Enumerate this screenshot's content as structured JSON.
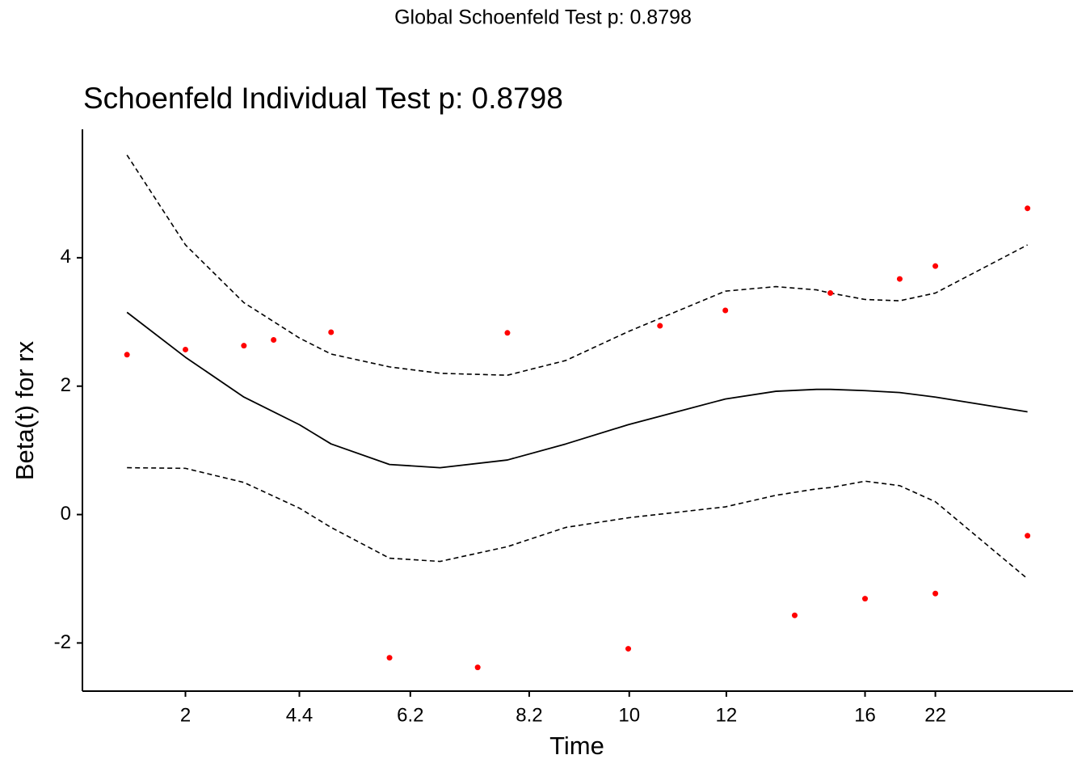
{
  "chart_data": {
    "type": "scatter",
    "suptitle": "Global Schoenfeld Test p: 0.8798",
    "title": "Schoenfeld Individual Test p: 0.8798",
    "xlabel": "Time",
    "ylabel": "Beta(t) for rx",
    "xlim": [
      0,
      1
    ],
    "ylim": [
      -2.75,
      6.0
    ],
    "xticks": [
      {
        "value": 0.104,
        "label": "2"
      },
      {
        "value": 0.219,
        "label": "4.4"
      },
      {
        "value": 0.331,
        "label": "6.2"
      },
      {
        "value": 0.451,
        "label": "8.2"
      },
      {
        "value": 0.552,
        "label": "10"
      },
      {
        "value": 0.65,
        "label": "12"
      },
      {
        "value": 0.79,
        "label": "16"
      },
      {
        "value": 0.861,
        "label": "22"
      }
    ],
    "yticks": [
      -2,
      0,
      2,
      4
    ],
    "points": {
      "color": "#ff0000",
      "x": [
        0.045,
        0.104,
        0.163,
        0.193,
        0.251,
        0.31,
        0.399,
        0.429,
        0.551,
        0.583,
        0.649,
        0.719,
        0.755,
        0.79,
        0.825,
        0.861,
        0.861,
        0.954,
        0.954
      ],
      "values": [
        2.49,
        2.57,
        2.63,
        2.72,
        2.84,
        -2.23,
        -2.38,
        2.83,
        -2.09,
        2.94,
        3.18,
        -1.57,
        3.45,
        -1.31,
        3.67,
        3.87,
        -1.23,
        4.77,
        -0.33
      ]
    },
    "line_x": [
      0.045,
      0.104,
      0.163,
      0.219,
      0.251,
      0.31,
      0.361,
      0.429,
      0.488,
      0.551,
      0.649,
      0.7,
      0.741,
      0.755,
      0.79,
      0.825,
      0.861,
      0.954
    ],
    "series": [
      {
        "color": "#000000",
        "dashed": false,
        "values": [
          3.15,
          2.45,
          1.83,
          1.4,
          1.1,
          0.78,
          0.73,
          0.85,
          1.1,
          1.4,
          1.8,
          1.92,
          1.95,
          1.95,
          1.93,
          1.9,
          1.83,
          1.6
        ]
      },
      {
        "color": "#000000",
        "dashed": true,
        "values": [
          5.6,
          4.2,
          3.3,
          2.75,
          2.5,
          2.3,
          2.2,
          2.17,
          2.4,
          2.85,
          3.48,
          3.55,
          3.5,
          3.45,
          3.35,
          3.33,
          3.45,
          4.2
        ]
      },
      {
        "color": "#000000",
        "dashed": true,
        "values": [
          0.73,
          0.72,
          0.5,
          0.1,
          -0.2,
          -0.68,
          -0.73,
          -0.5,
          -0.2,
          -0.05,
          0.12,
          0.3,
          0.4,
          0.42,
          0.52,
          0.45,
          0.2,
          -1.0
        ]
      }
    ]
  }
}
